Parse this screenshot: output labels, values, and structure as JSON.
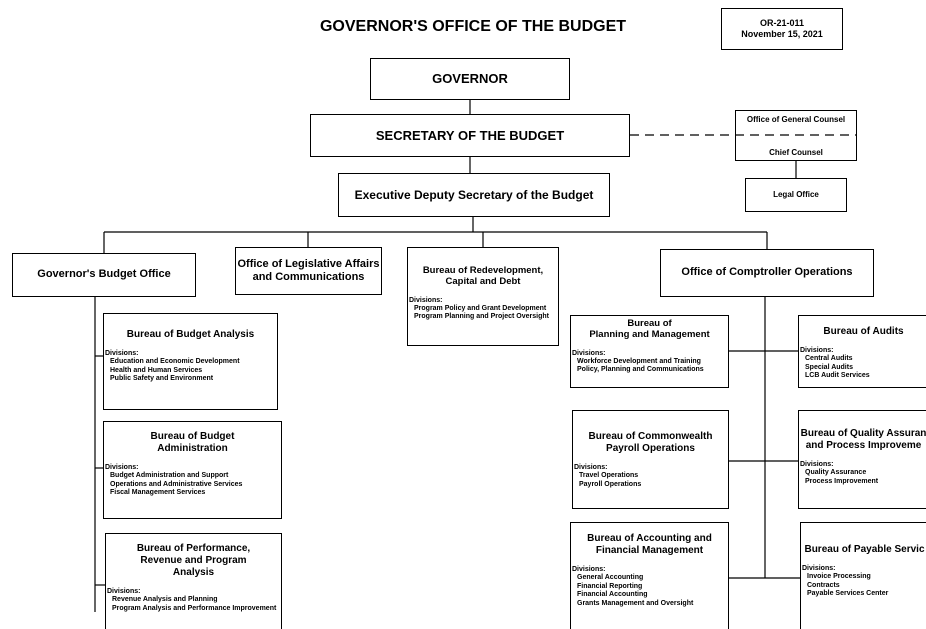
{
  "title": "GOVERNOR'S OFFICE OF THE BUDGET",
  "document": {
    "code": "OR-21-011",
    "date": "November 15, 2021"
  },
  "general_counsel": {
    "title": "Office of General Counsel",
    "subtitle": "Chief Counsel"
  },
  "nodes": [
    {
      "title": [
        "GOVERNOR"
      ]
    },
    {
      "title": [
        "SECRETARY OF THE BUDGET"
      ]
    },
    {
      "title": [
        "Legal Office"
      ]
    },
    {
      "title": [
        "Executive Deputy Secretary of the Budget"
      ]
    },
    {
      "title": [
        "Governor's Budget Office"
      ]
    },
    {
      "title": [
        "Office of Legislative Affairs",
        "and Communications"
      ]
    },
    {
      "title": [
        "Bureau of Redevelopment,",
        "Capital and Debt"
      ],
      "divisions_label": "Divisions:",
      "divisions": [
        "Program Policy and Grant Development",
        "Program Planning and Project Oversight"
      ]
    },
    {
      "title": [
        "Office of Comptroller Operations"
      ]
    },
    {
      "title": [
        "Bureau of Budget Analysis"
      ],
      "divisions_label": "Divisions:",
      "divisions": [
        "Education and Economic Development",
        "Health and Human Services",
        "Public Safety and Environment"
      ]
    },
    {
      "title": [
        "Bureau of Budget",
        "Administration"
      ],
      "divisions_label": "Divisions:",
      "divisions": [
        "Budget Administration and Support",
        "Operations and Administrative Services",
        "Fiscal Management Services"
      ]
    },
    {
      "title": [
        "Bureau of Performance,",
        "Revenue and Program",
        "Analysis"
      ],
      "divisions_label": "Divisions:",
      "divisions": [
        "Revenue Analysis and Planning",
        "Program Analysis and Performance Improvement"
      ]
    },
    {
      "title": [
        "Bureau of",
        "Planning and Management"
      ],
      "divisions_label": "Divisions:",
      "divisions": [
        "Workforce Development and Training",
        "Policy, Planning and Communications"
      ]
    },
    {
      "title": [
        "Bureau of Commonwealth",
        "Payroll Operations"
      ],
      "divisions_label": "Divisions:",
      "divisions": [
        "Travel Operations",
        "Payroll Operations"
      ]
    },
    {
      "title": [
        "Bureau of Accounting and",
        "Financial Management"
      ],
      "divisions_label": "Divisions:",
      "divisions": [
        "General Accounting",
        "Financial Reporting",
        "Financial Accounting",
        "Grants Management and Oversight"
      ]
    },
    {
      "title": [
        "Bureau of Audits"
      ],
      "divisions_label": "Divisions:",
      "divisions": [
        "Central Audits",
        "Special Audits",
        "LCB Audit Services"
      ]
    },
    {
      "title": [
        "Bureau of Quality Assuran",
        "and Process Improveme"
      ],
      "divisions_label": "Divisions:",
      "divisions": [
        "Quality Assurance",
        "Process Improvement"
      ]
    },
    {
      "title": [
        "Bureau of Payable Servic"
      ],
      "divisions_label": "Divisions:",
      "divisions": [
        "Invoice Processing",
        "Contracts",
        "Payable Services Center"
      ]
    }
  ]
}
